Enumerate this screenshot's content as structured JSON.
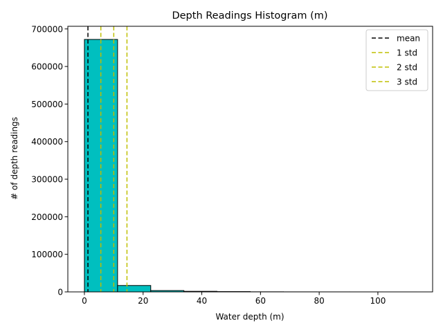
{
  "chart_data": {
    "type": "bar",
    "title": "Depth Readings Histogram (m)",
    "xlabel": "Water depth (m)",
    "ylabel": "# of depth readings",
    "xlim": [
      -5.65,
      118.65
    ],
    "ylim": [
      0,
      707000
    ],
    "xticks": [
      0,
      20,
      40,
      60,
      80,
      100
    ],
    "yticks": [
      0,
      100000,
      200000,
      300000,
      400000,
      500000,
      600000,
      700000
    ],
    "bins": [
      {
        "x0": 0.0,
        "x1": 11.3,
        "count": 672000
      },
      {
        "x0": 11.3,
        "x1": 22.6,
        "count": 17000
      },
      {
        "x0": 22.6,
        "x1": 33.9,
        "count": 3500
      },
      {
        "x0": 33.9,
        "x1": 45.2,
        "count": 1500
      },
      {
        "x0": 45.2,
        "x1": 56.5,
        "count": 800
      },
      {
        "x0": 56.5,
        "x1": 67.8,
        "count": 250
      },
      {
        "x0": 67.8,
        "x1": 79.1,
        "count": 120
      },
      {
        "x0": 79.1,
        "x1": 90.4,
        "count": 60
      },
      {
        "x0": 90.4,
        "x1": 101.7,
        "count": 30
      },
      {
        "x0": 101.7,
        "x1": 113.0,
        "count": 10
      }
    ],
    "vlines": [
      {
        "name": "mean",
        "x": 1.2,
        "color": "#000000"
      },
      {
        "name": "1 std",
        "x": 5.6,
        "color": "#bfbf00"
      },
      {
        "name": "2 std",
        "x": 10.0,
        "color": "#bfbf00"
      },
      {
        "name": "3 std",
        "x": 14.5,
        "color": "#bfbf00"
      }
    ],
    "bar_color": "#00bfbf",
    "edge_color": "#000000",
    "grid": false,
    "legend_position": "top-right"
  }
}
